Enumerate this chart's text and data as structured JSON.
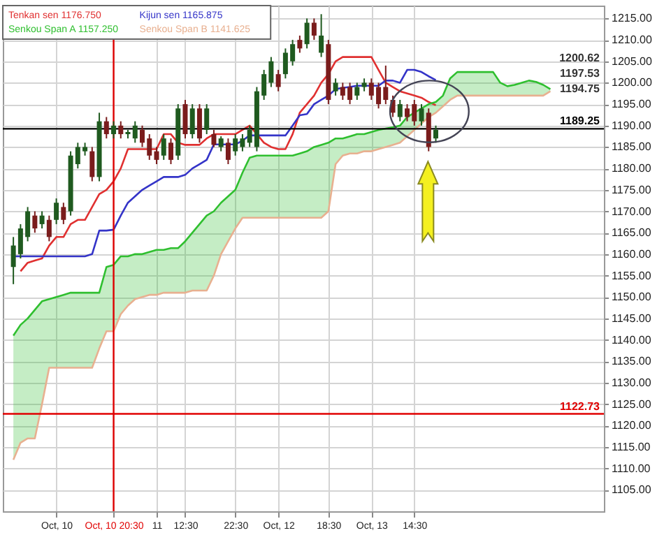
{
  "chart_data": {
    "type": "candlestick",
    "categories": [
      null,
      null,
      null,
      null,
      null,
      null,
      "Oct, 10",
      null,
      null,
      null,
      null,
      null,
      null,
      null,
      "Oct, 10 20:30",
      null,
      null,
      null,
      null,
      null,
      "11",
      null,
      null,
      null,
      "12:30",
      null,
      null,
      null,
      null,
      null,
      null,
      "22:30",
      null,
      null,
      null,
      null,
      null,
      "Oct, 12",
      null,
      null,
      null,
      null,
      null,
      null,
      "18:30",
      null,
      null,
      null,
      null,
      null,
      "Oct, 13",
      null,
      null,
      null,
      null,
      null,
      "14:30",
      null,
      null,
      null,
      null,
      null,
      null,
      null,
      null,
      null,
      null,
      null,
      null,
      null,
      null,
      null,
      null,
      null,
      null,
      null
    ],
    "ohlc": [
      [
        1157,
        1164,
        1153,
        1162
      ],
      [
        1160,
        1167,
        1159,
        1166
      ],
      [
        1164,
        1171,
        1163,
        1170
      ],
      [
        1169,
        1170,
        1165,
        1166
      ],
      [
        1167,
        1170,
        1166,
        1169
      ],
      [
        1168,
        1169,
        1163,
        1164
      ],
      [
        1168,
        1173,
        1167,
        1172
      ],
      [
        1171,
        1172,
        1167,
        1168
      ],
      [
        1170,
        1184,
        1169,
        1183
      ],
      [
        1181,
        1186,
        1180,
        1185
      ],
      [
        1184,
        1186,
        1183,
        1185
      ],
      [
        1184,
        1185,
        1177,
        1178
      ],
      [
        1178,
        1193,
        1177,
        1191
      ],
      [
        1191,
        1192,
        1187,
        1188
      ],
      [
        1188,
        1191,
        1187,
        1190
      ],
      [
        1190,
        1191,
        1187,
        1188
      ],
      [
        1188,
        1189,
        1187,
        1188.5
      ],
      [
        1187,
        1191,
        1186,
        1190
      ],
      [
        1189,
        1190,
        1185,
        1186
      ],
      [
        1187,
        1188,
        1182,
        1183
      ],
      [
        1184,
        1185,
        1181,
        1182
      ],
      [
        1183,
        1188,
        1182,
        1187
      ],
      [
        1186,
        1187,
        1181,
        1182
      ],
      [
        1183,
        1195,
        1182,
        1194
      ],
      [
        1195,
        1196,
        1187,
        1188
      ],
      [
        1188,
        1195,
        1187,
        1194
      ],
      [
        1194,
        1195,
        1186,
        1187
      ],
      [
        1189,
        1195,
        1188,
        1194
      ],
      [
        1188,
        1189,
        1185,
        1185.5
      ],
      [
        1185,
        1187.5,
        1184,
        1187
      ],
      [
        1186,
        1187,
        1181,
        1182
      ],
      [
        1184,
        1188,
        1183,
        1187
      ],
      [
        1185,
        1188,
        1184,
        1187
      ],
      [
        1186,
        1190,
        1185,
        1189
      ],
      [
        1185,
        1199,
        1184,
        1198
      ],
      [
        1197,
        1203,
        1196,
        1202
      ],
      [
        1200,
        1206,
        1199,
        1205
      ],
      [
        1202,
        1203,
        1198,
        1199
      ],
      [
        1202,
        1208,
        1201,
        1207
      ],
      [
        1205,
        1210,
        1204,
        1209
      ],
      [
        1210,
        1211,
        1207,
        1208
      ],
      [
        1209,
        1215,
        1208,
        1214
      ],
      [
        1214,
        1215,
        1210,
        1211
      ],
      [
        1207,
        1216,
        1206,
        1211
      ],
      [
        1209,
        1210,
        1195,
        1196
      ],
      [
        1198,
        1201,
        1197,
        1200
      ],
      [
        1199,
        1200,
        1196,
        1197
      ],
      [
        1199,
        1200,
        1195,
        1196
      ],
      [
        1197,
        1200,
        1196,
        1199
      ],
      [
        1199,
        1201,
        1198,
        1200
      ],
      [
        1200,
        1201,
        1196,
        1197
      ],
      [
        1199,
        1200,
        1194,
        1195
      ],
      [
        1199,
        1204,
        1195,
        1196
      ],
      [
        1196,
        1197,
        1192,
        1193
      ],
      [
        1192,
        1196,
        1191,
        1195
      ],
      [
        1194,
        1195,
        1191,
        1192
      ],
      [
        1195,
        1196,
        1190,
        1191
      ],
      [
        1191,
        1195,
        1190,
        1194
      ],
      [
        1193,
        1194,
        1184,
        1185
      ],
      [
        1187,
        1190,
        1186,
        1189
      ],
      null,
      null,
      null,
      null,
      null,
      null,
      null,
      null,
      null,
      null,
      null,
      null,
      null,
      null,
      null,
      null
    ],
    "colors": [
      "#1f5a1f",
      "#1f5a1f",
      "#1f5a1f",
      "#7a1c1c",
      "#1f5a1f",
      "#7a1c1c",
      "#1f5a1f",
      "#7a1c1c",
      "#1f5a1f",
      "#1f5a1f",
      "#1f5a1f",
      "#7a1c1c",
      "#1f5a1f",
      "#7a1c1c",
      "#1f5a1f",
      "#7a1c1c",
      "#1f5a1f",
      "#1f5a1f",
      "#7a1c1c",
      "#7a1c1c",
      "#7a1c1c",
      "#1f5a1f",
      "#7a1c1c",
      "#1f5a1f",
      "#7a1c1c",
      "#1f5a1f",
      "#7a1c1c",
      "#1f5a1f",
      "#7a1c1c",
      "#1f5a1f",
      "#7a1c1c",
      "#1f5a1f",
      "#1f5a1f",
      "#1f5a1f",
      "#1f5a1f",
      "#1f5a1f",
      "#1f5a1f",
      "#7a1c1c",
      "#1f5a1f",
      "#1f5a1f",
      "#7a1c1c",
      "#1f5a1f",
      "#7a1c1c",
      "#1f5a1f",
      "#7a1c1c",
      "#1f5a1f",
      "#7a1c1c",
      "#7a1c1c",
      "#1f5a1f",
      "#1f5a1f",
      "#7a1c1c",
      "#7a1c1c",
      "#7a1c1c",
      "#7a1c1c",
      "#1f5a1f",
      "#7a1c1c",
      "#7a1c1c",
      "#1f5a1f",
      "#7a1c1c",
      "#1f5a1f",
      null,
      null,
      null,
      null,
      null,
      null,
      null,
      null,
      null,
      null,
      null,
      null,
      null,
      null,
      null,
      null
    ],
    "series": [
      {
        "name": "Tenkan sen 1176.750",
        "type": "line",
        "color": "#e03030",
        "values": [
          null,
          1156,
          1158,
          1158.5,
          1159,
          1162,
          1164,
          1164,
          1167,
          1168,
          1168,
          1171,
          1174,
          1175,
          1177,
          1180,
          1184.5,
          1184.5,
          1184.5,
          1184.5,
          1184.5,
          1188,
          1188,
          1186,
          1185.5,
          1185.5,
          1185.5,
          1187,
          1188,
          1188,
          1188,
          1188,
          1189,
          1190,
          1188,
          1186,
          1185,
          1184.5,
          1184.5,
          1188,
          1193,
          1195,
          1197,
          1200,
          1202,
          1205,
          1206,
          1206,
          1206,
          1206,
          1206,
          1203,
          1200,
          1199,
          1198,
          1197.5,
          1197,
          1196.5,
          1195.5,
          1194.75,
          null,
          null,
          null,
          null,
          null,
          null,
          null,
          null,
          null,
          null,
          null,
          null,
          null,
          null,
          null,
          null
        ]
      },
      {
        "name": "Kijun sen 1165.875",
        "type": "line",
        "color": "#3434c8",
        "values": [
          1159.5,
          1159.5,
          1159.5,
          1159.5,
          1159.5,
          1159.5,
          1159.5,
          1159.5,
          1159.5,
          1159.5,
          1159.5,
          1160,
          1165.5,
          1165.5,
          1165.7,
          1169,
          1172,
          1173.5,
          1175,
          1176,
          1177,
          1178,
          1178,
          1178,
          1178.5,
          1180,
          1181,
          1182,
          1185.6,
          1185.6,
          1185.6,
          1185.6,
          1186.5,
          1187.7,
          1187.7,
          1187.7,
          1187.7,
          1187.7,
          1187.7,
          1190,
          1192.4,
          1192.7,
          1195,
          1196,
          1197,
          1198.5,
          1198.8,
          1199,
          1199.3,
          1199.3,
          1199.3,
          1199.3,
          1200.5,
          1200.5,
          1200,
          1203,
          1203,
          1202.5,
          1201.5,
          1200.62,
          null,
          null,
          null,
          null,
          null,
          null,
          null,
          null,
          null,
          null,
          null,
          null,
          null,
          null,
          null,
          null
        ]
      },
      {
        "name": "Senkou Span A 1157.250",
        "type": "line",
        "color": "#2fbf2f",
        "values": [
          1141,
          1143.5,
          1145,
          1147,
          1149,
          1149.5,
          1150,
          1150.5,
          1151,
          1151,
          1151,
          1151,
          1151,
          1157,
          1157.5,
          1159.5,
          1159.5,
          1160,
          1160,
          1160.5,
          1161,
          1161,
          1161.4,
          1161.4,
          1163,
          1165,
          1167,
          1169,
          1170,
          1172,
          1173.5,
          1175,
          1179,
          1182.5,
          1183,
          1183,
          1183,
          1183,
          1183,
          1183,
          1183.5,
          1184,
          1185,
          1185.5,
          1186,
          1187,
          1187,
          1187.5,
          1188,
          1188,
          1188.5,
          1189,
          1189.3,
          1189.6,
          1190,
          1192,
          1193,
          1194,
          1195,
          1195.5,
          1197,
          1201,
          1202.5,
          1202.5,
          1202.5,
          1202.5,
          1202.5,
          1202.5,
          1200,
          1199.2,
          1199.5,
          1200,
          1200.5,
          1200.2,
          1199.5,
          1198.5
        ],
        "upper": [
          1141,
          1143.5,
          1145,
          1147,
          1149,
          1149.5,
          1150,
          1150.5,
          1151,
          1151,
          1151,
          1151,
          1151,
          1157,
          1157.5,
          1159.5,
          1159.5,
          1160,
          1160,
          1160.5,
          1161,
          1161,
          1161.4,
          1161.4,
          1163,
          1165,
          1167,
          1169,
          1170,
          1172,
          1173.5,
          1175,
          1179,
          1182.5,
          1183,
          1183,
          1183,
          1183,
          1183,
          1183,
          1183.5,
          1184,
          1185,
          1185.5,
          1186,
          1187,
          1187,
          1187.5,
          1188,
          1188,
          1188.5,
          1189,
          1189.3,
          1189.6,
          1190,
          1192,
          1193,
          1194,
          1195,
          1195.5,
          1197,
          1201,
          1202.5,
          1202.5,
          1202.5,
          1202.5,
          1202.5,
          1202.5,
          1200,
          1199.2,
          1199.5,
          1200,
          1200.5,
          1200.2,
          1199.5,
          1198.5
        ],
        "lower": [
          1112,
          1116,
          1117,
          1117,
          1125,
          1133.5,
          1133.5,
          1133.5,
          1133.5,
          1133.5,
          1133.5,
          1133.5,
          1138,
          1142,
          1142,
          1146,
          1148,
          1149.5,
          1150,
          1150.5,
          1150.5,
          1151,
          1151,
          1151,
          1151,
          1151.5,
          1151.5,
          1151.5,
          1155,
          1160,
          1163,
          1166,
          1168.5,
          1168.5,
          1168.5,
          1168.5,
          1168.5,
          1168.5,
          1168.5,
          1168.5,
          1168.5,
          1168.5,
          1168.5,
          1168.5,
          1170,
          1181,
          1183,
          1183.5,
          1183.5,
          1184,
          1184,
          1184.5,
          1185,
          1185.5,
          1186,
          1187.5,
          1189,
          1190.5,
          1192,
          1193,
          1194.5,
          1196,
          1197,
          1197,
          1197,
          1197,
          1197,
          1197,
          1197,
          1197,
          1197,
          1197,
          1197,
          1197,
          1197,
          1198
        ]
      },
      {
        "name": "Senkou Span B 1141.625",
        "type": "line",
        "color": "#e8b090",
        "values": [
          1112,
          1116,
          1117,
          1117,
          1125,
          1133.5,
          1133.5,
          1133.5,
          1133.5,
          1133.5,
          1133.5,
          1133.5,
          1138,
          1142,
          1142,
          1146,
          1148,
          1149.5,
          1150,
          1150.5,
          1150.5,
          1151,
          1151,
          1151,
          1151,
          1151.5,
          1151.5,
          1151.5,
          1155,
          1160,
          1163,
          1166,
          1168.5,
          1168.5,
          1168.5,
          1168.5,
          1168.5,
          1168.5,
          1168.5,
          1168.5,
          1168.5,
          1168.5,
          1168.5,
          1168.5,
          1170,
          1181,
          1183,
          1183.5,
          1183.5,
          1184,
          1184,
          1184.5,
          1185,
          1185.5,
          1186,
          1187.5,
          1189,
          1190.5,
          1192,
          1193,
          1194.5,
          1196,
          1197,
          1197,
          1197,
          1197,
          1197,
          1197,
          1197,
          1197,
          1197,
          1197,
          1197,
          1197,
          1197,
          1198
        ]
      }
    ],
    "ylim": [
      1100,
      1218
    ],
    "yticks": [
      {
        "value": 1105,
        "label": "1105.00"
      },
      {
        "value": 1110,
        "label": "1110.00"
      },
      {
        "value": 1115,
        "label": "1115.00"
      },
      {
        "value": 1120,
        "label": "1120.00"
      },
      {
        "value": 1125,
        "label": "1125.00"
      },
      {
        "value": 1130,
        "label": "1130.00"
      },
      {
        "value": 1135,
        "label": "1135.00"
      },
      {
        "value": 1140,
        "label": "1140.00"
      },
      {
        "value": 1145,
        "label": "1145.00"
      },
      {
        "value": 1150,
        "label": "1150.00"
      },
      {
        "value": 1155,
        "label": "1155.00"
      },
      {
        "value": 1160,
        "label": "1160.00"
      },
      {
        "value": 1165,
        "label": "1165.00"
      },
      {
        "value": 1170,
        "label": "1170.00"
      },
      {
        "value": 1175,
        "label": "1175.00"
      },
      {
        "value": 1180,
        "label": "1180.00"
      },
      {
        "value": 1185,
        "label": "1185.00"
      },
      {
        "value": 1190,
        "label": "1190.00"
      },
      {
        "value": 1195,
        "label": "1195.00"
      },
      {
        "value": 1200,
        "label": "1200.00"
      },
      {
        "value": 1205,
        "label": "1205.00"
      },
      {
        "value": 1210,
        "label": "1210.00"
      },
      {
        "value": 1215,
        "label": "1215.00"
      }
    ],
    "ref_lines": [
      {
        "axis": "y",
        "value": 1189.25,
        "label": "1189.25",
        "color": "#000000"
      },
      {
        "axis": "y",
        "value": 1122.73,
        "label": "1122.73",
        "color": "#e00000"
      },
      {
        "axis": "x",
        "value": "Oct, 10 20:30",
        "label": null,
        "color": "#e00000"
      }
    ],
    "annotations": [
      "1200.62",
      "1197.53",
      "1194.75"
    ],
    "grid": true,
    "legend": "top left"
  }
}
